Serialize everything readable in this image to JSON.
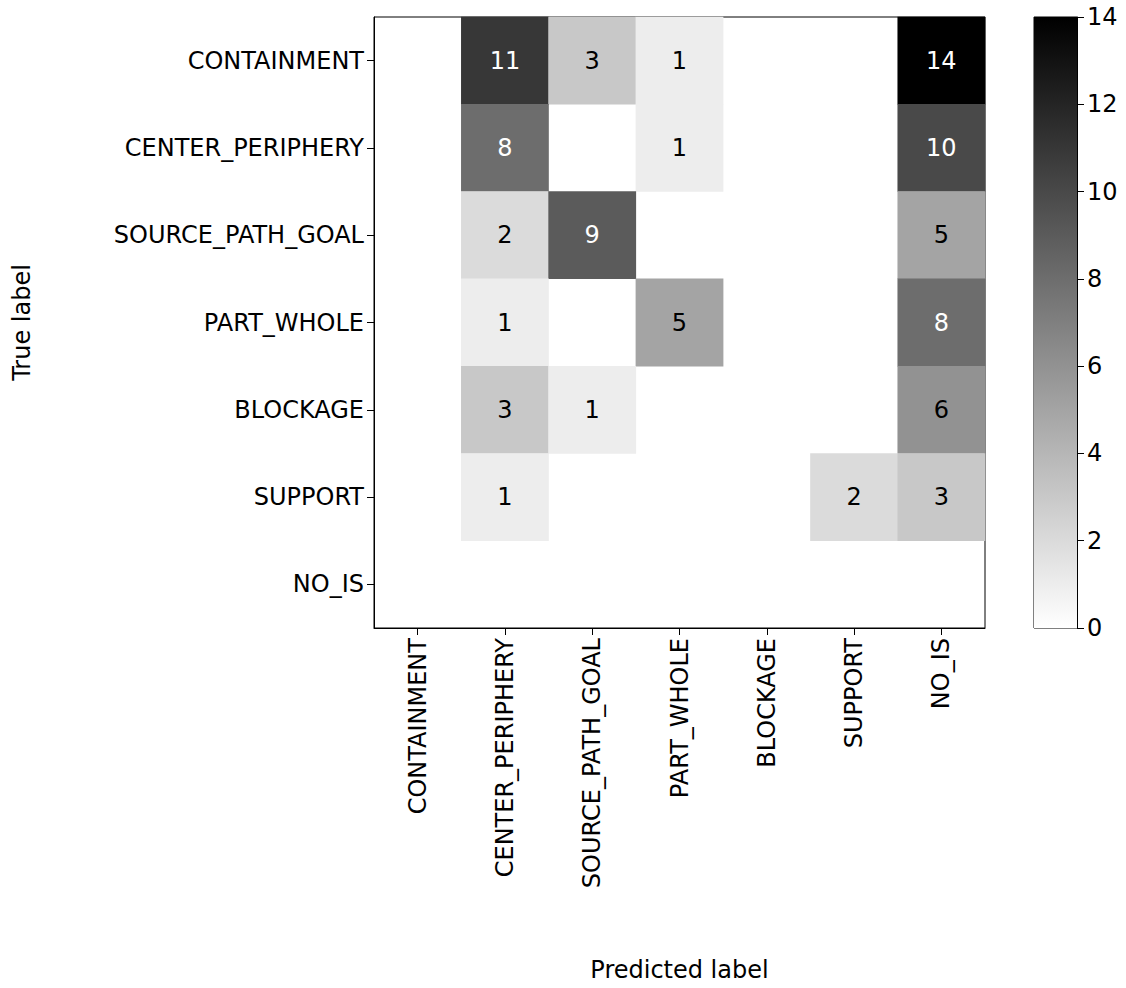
{
  "chart_data": {
    "type": "heatmap",
    "x_label": "Predicted label",
    "y_label": "True label",
    "x_categories": [
      "CONTAINMENT",
      "CENTER_PERIPHERY",
      "SOURCE_PATH_GOAL",
      "PART_WHOLE",
      "BLOCKAGE",
      "SUPPORT",
      "NO_IS"
    ],
    "y_categories": [
      "CONTAINMENT",
      "CENTER_PERIPHERY",
      "SOURCE_PATH_GOAL",
      "PART_WHOLE",
      "BLOCKAGE",
      "SUPPORT",
      "NO_IS"
    ],
    "cells": [
      [
        null,
        11,
        3,
        1,
        null,
        null,
        14
      ],
      [
        null,
        8,
        null,
        1,
        null,
        null,
        10
      ],
      [
        null,
        2,
        9,
        null,
        null,
        null,
        5
      ],
      [
        null,
        1,
        null,
        5,
        null,
        null,
        8
      ],
      [
        null,
        3,
        1,
        null,
        null,
        null,
        6
      ],
      [
        null,
        1,
        null,
        null,
        null,
        2,
        3
      ],
      [
        null,
        null,
        null,
        null,
        null,
        null,
        null
      ]
    ],
    "colorbar": {
      "range": [
        0,
        14
      ],
      "ticks": [
        0,
        2,
        4,
        6,
        8,
        10,
        12,
        14
      ]
    },
    "color": "greys",
    "data_labels": true
  }
}
